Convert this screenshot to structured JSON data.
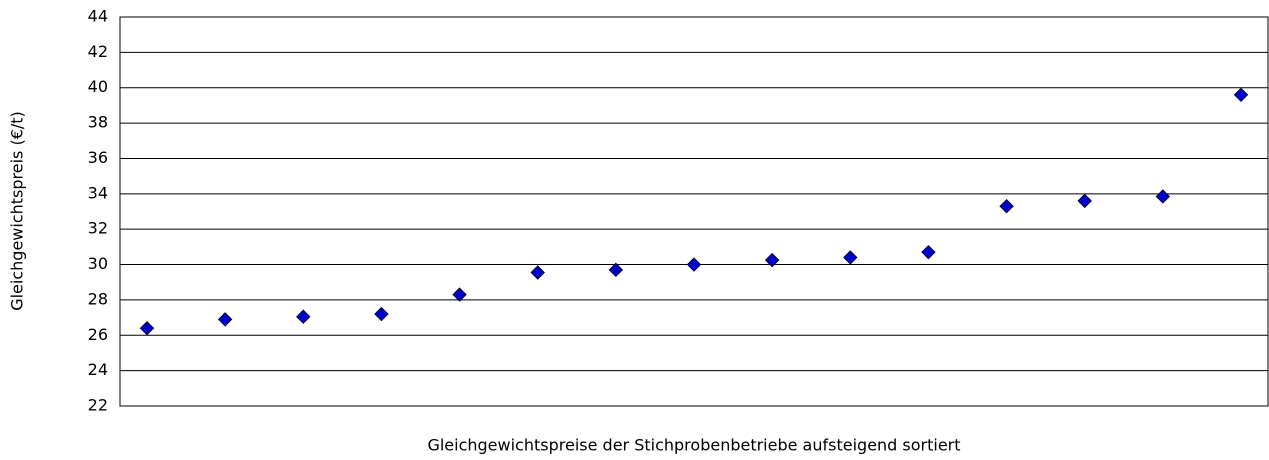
{
  "chart_data": {
    "type": "scatter",
    "x_label": "Gleichgewichtspreise der Stichprobenbetriebe aufsteigend sortiert",
    "y_label": "Gleichgewichtspreis (€/t)",
    "categories": [
      null,
      null,
      null,
      null,
      null,
      null,
      null,
      null,
      null,
      null,
      null,
      null,
      null,
      null,
      null
    ],
    "values": [
      26.4,
      26.9,
      27.05,
      27.2,
      28.3,
      29.55,
      29.7,
      30.0,
      30.25,
      30.4,
      30.7,
      33.3,
      33.6,
      33.85,
      39.6
    ],
    "color": "#0000cc",
    "ylim": [
      22,
      44
    ],
    "yticks": [
      22,
      24,
      26,
      28,
      30,
      32,
      34,
      36,
      38,
      40,
      42,
      44
    ],
    "grid": true
  }
}
